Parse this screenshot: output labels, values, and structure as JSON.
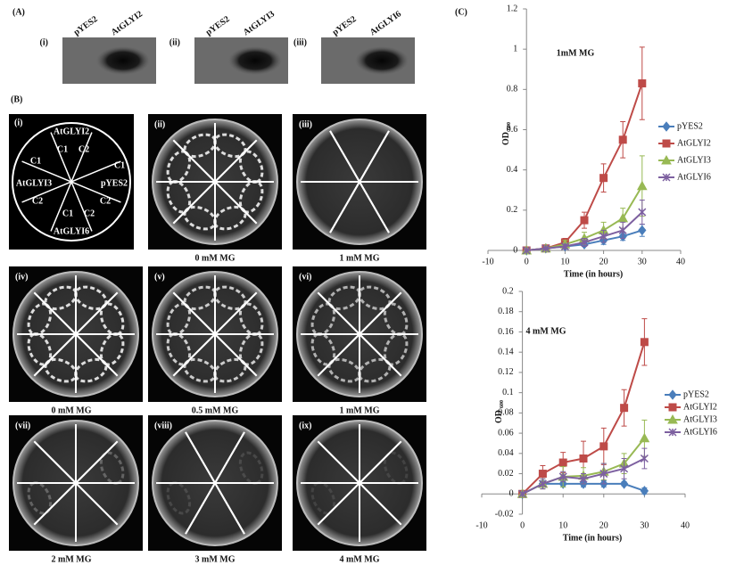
{
  "figure": {
    "panel_a": {
      "label": "(A)",
      "blots": [
        {
          "label": "(i)",
          "lanes": [
            "pYES2",
            "AtGLYI2"
          ]
        },
        {
          "label": "(ii)",
          "lanes": [
            "pYES2",
            "AtGLYI3"
          ]
        },
        {
          "label": "(iii)",
          "lanes": [
            "pYES2",
            "AtGLYI6"
          ]
        }
      ]
    },
    "panel_b": {
      "label": "(B)",
      "key": {
        "label": "(i)",
        "texts": [
          "AtGLYI2",
          "C1",
          "C2",
          "C1",
          "C1",
          "AtGLYI3",
          "pYES2",
          "C2",
          "C2",
          "C1",
          "C2",
          "AtGLYI6"
        ]
      },
      "plates": [
        {
          "label": "(ii)",
          "caption": "0 mM MG"
        },
        {
          "label": "(iii)",
          "caption": "1 mM MG"
        },
        {
          "label": "(iv)",
          "caption": "0 mM MG"
        },
        {
          "label": "(v)",
          "caption": "0.5 mM MG"
        },
        {
          "label": "(vi)",
          "caption": "1 mM MG"
        },
        {
          "label": "(vii)",
          "caption": "2 mM MG"
        },
        {
          "label": "(viii)",
          "caption": "3 mM MG"
        },
        {
          "label": "(ix)",
          "caption": "4 mM MG"
        }
      ]
    },
    "panel_c_label": "(C)"
  },
  "chart_data": [
    {
      "type": "line",
      "title": "1mM MG",
      "x_label": "Time (in hours)",
      "y_label": "OD",
      "y_label_sub": "600",
      "x": [
        0,
        5,
        10,
        15,
        20,
        25,
        30
      ],
      "xlim": [
        -10,
        40
      ],
      "xticks": [
        -10,
        0,
        10,
        20,
        30,
        40
      ],
      "ylim": [
        0,
        1.2
      ],
      "yticks": [
        0,
        0.2,
        0.4,
        0.6,
        0.8,
        1,
        1.2
      ],
      "series": [
        {
          "name": "pYES2",
          "color": "#4a7ebb",
          "marker": "diamond",
          "values": [
            0,
            0.01,
            0.02,
            0.03,
            0.05,
            0.07,
            0.1
          ],
          "errors": [
            0,
            0.005,
            0.01,
            0.01,
            0.02,
            0.02,
            0.03
          ]
        },
        {
          "name": "AtGLYI2",
          "color": "#be4b48",
          "marker": "square",
          "values": [
            0,
            0.01,
            0.04,
            0.15,
            0.36,
            0.55,
            0.83
          ],
          "errors": [
            0,
            0.01,
            0.02,
            0.04,
            0.07,
            0.09,
            0.18
          ]
        },
        {
          "name": "AtGLYI3",
          "color": "#98b954",
          "marker": "triangle",
          "values": [
            0,
            0.01,
            0.03,
            0.06,
            0.1,
            0.16,
            0.32
          ],
          "errors": [
            0,
            0.01,
            0.02,
            0.03,
            0.04,
            0.05,
            0.15
          ]
        },
        {
          "name": "AtGLYI6",
          "color": "#7d60a0",
          "marker": "cross",
          "values": [
            0,
            0.01,
            0.02,
            0.04,
            0.07,
            0.1,
            0.19
          ],
          "errors": [
            0,
            0.005,
            0.01,
            0.02,
            0.03,
            0.04,
            0.06
          ]
        }
      ]
    },
    {
      "type": "line",
      "title": "4 mM MG",
      "x_label": "Time (in hours)",
      "y_label": "OD",
      "y_label_sub": "600",
      "x": [
        0,
        5,
        10,
        15,
        20,
        25,
        30
      ],
      "xlim": [
        -10,
        40
      ],
      "xticks": [
        -10,
        0,
        10,
        20,
        30,
        40
      ],
      "ylim": [
        -0.02,
        0.2
      ],
      "yticks": [
        -0.02,
        0,
        0.02,
        0.04,
        0.06,
        0.08,
        0.1,
        0.12,
        0.14,
        0.16,
        0.18,
        0.2
      ],
      "series": [
        {
          "name": "pYES2",
          "color": "#4a7ebb",
          "marker": "diamond",
          "values": [
            0,
            0.01,
            0.01,
            0.01,
            0.01,
            0.01,
            0.003
          ],
          "errors": [
            0,
            0.003,
            0.003,
            0.003,
            0.003,
            0.002,
            0.003
          ]
        },
        {
          "name": "AtGLYI2",
          "color": "#be4b48",
          "marker": "square",
          "values": [
            0,
            0.02,
            0.031,
            0.035,
            0.047,
            0.085,
            0.15
          ],
          "errors": [
            0,
            0.008,
            0.01,
            0.017,
            0.018,
            0.018,
            0.023
          ]
        },
        {
          "name": "AtGLYI3",
          "color": "#98b954",
          "marker": "triangle",
          "values": [
            0,
            0.01,
            0.017,
            0.018,
            0.022,
            0.03,
            0.055
          ],
          "errors": [
            0,
            0.005,
            0.01,
            0.008,
            0.008,
            0.01,
            0.018
          ]
        },
        {
          "name": "AtGLYI6",
          "color": "#7d60a0",
          "marker": "cross",
          "values": [
            0,
            0.01,
            0.017,
            0.015,
            0.02,
            0.025,
            0.035
          ],
          "errors": [
            0,
            0.005,
            0.005,
            0.005,
            0.01,
            0.01,
            0.01
          ]
        }
      ]
    }
  ]
}
